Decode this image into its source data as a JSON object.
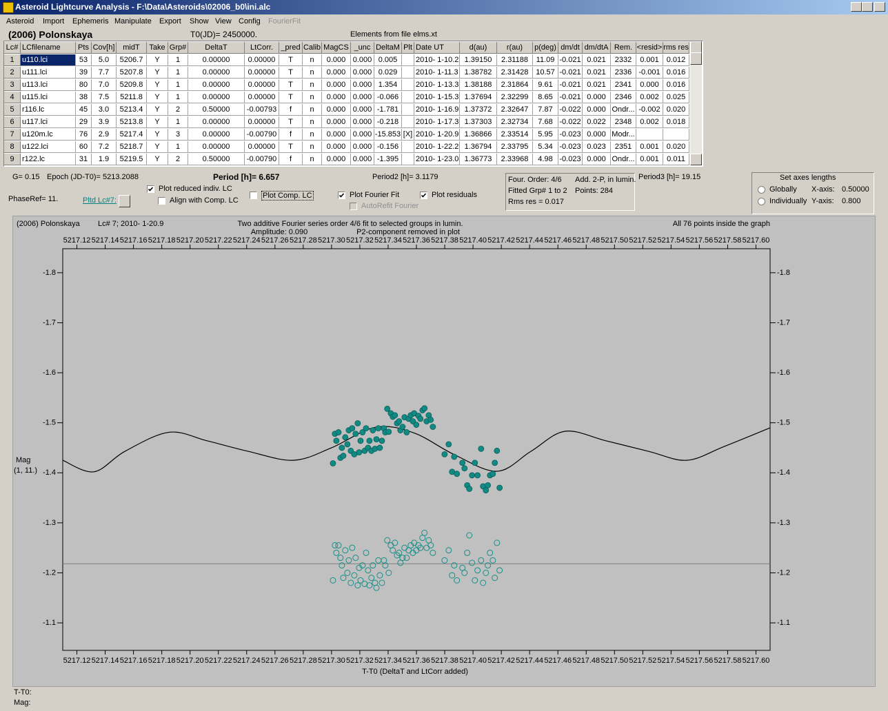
{
  "window": {
    "title": "Asteroid Lightcurve Analysis - F:\\Data\\Asteroids\\02006_b0\\ini.alc"
  },
  "menu": [
    "Asteroid",
    "Import",
    "Ephemeris",
    "Manipulate",
    "Export",
    "Show",
    "View",
    "Config",
    "FourierFit"
  ],
  "header": {
    "object": "(2006) Polonskaya",
    "t0": "T0(JD)= 2450000.",
    "elements": "Elements from file elms.xt"
  },
  "table": {
    "columns": [
      "Lc#",
      "LCfilename",
      "Pts",
      "Cov[h]",
      "midT",
      "Take",
      "Grp#",
      "DeltaT",
      "LtCorr.",
      "_pred",
      "Calib",
      "MagCS",
      "_unc",
      "DeltaM",
      "Plt",
      "Date UT",
      "d(au)",
      "r(au)",
      "p(deg)",
      "dm/dt",
      "dm/dtA",
      "Rem.",
      "<resid>",
      "rms res"
    ],
    "rows": [
      [
        "1",
        "u110.lci",
        "53",
        "5.0",
        "5206.7",
        "Y",
        "1",
        "0.00000",
        "0.00000",
        "T",
        "n",
        "0.000",
        "0.000",
        "0.005",
        null,
        "2010- 1-10.2",
        "1.39150",
        "2.31188",
        "11.09",
        "-0.021",
        "0.021",
        "2332",
        "0.001",
        "0.012"
      ],
      [
        "2",
        "u111.lci",
        "39",
        "7.7",
        "5207.8",
        "Y",
        "1",
        "0.00000",
        "0.00000",
        "T",
        "n",
        "0.000",
        "0.000",
        "0.029",
        null,
        "2010- 1-11.3",
        "1.38782",
        "2.31428",
        "10.57",
        "-0.021",
        "0.021",
        "2336",
        "-0.001",
        "0.016"
      ],
      [
        "3",
        "u113.lci",
        "80",
        "7.0",
        "5209.8",
        "Y",
        "1",
        "0.00000",
        "0.00000",
        "T",
        "n",
        "0.000",
        "0.000",
        "1.354",
        null,
        "2010- 1-13.3",
        "1.38188",
        "2.31864",
        "9.61",
        "-0.021",
        "0.021",
        "2341",
        "0.000",
        "0.016"
      ],
      [
        "4",
        "u115.lci",
        "38",
        "7.5",
        "5211.8",
        "Y",
        "1",
        "0.00000",
        "0.00000",
        "T",
        "n",
        "0.000",
        "0.000",
        "-0.066",
        null,
        "2010- 1-15.3",
        "1.37694",
        "2.32299",
        "8.65",
        "-0.021",
        "0.000",
        "2346",
        "0.002",
        "0.025"
      ],
      [
        "5",
        "r116.lc",
        "45",
        "3.0",
        "5213.4",
        "Y",
        "2",
        "0.50000",
        "-0.00793",
        "f",
        "n",
        "0.000",
        "0.000",
        "-1.781",
        null,
        "2010- 1-16.9",
        "1.37372",
        "2.32647",
        "7.87",
        "-0.022",
        "0.000",
        "Ondr...",
        "-0.002",
        "0.020"
      ],
      [
        "6",
        "u117.lci",
        "29",
        "3.9",
        "5213.8",
        "Y",
        "1",
        "0.00000",
        "0.00000",
        "T",
        "n",
        "0.000",
        "0.000",
        "-0.218",
        null,
        "2010- 1-17.3",
        "1.37303",
        "2.32734",
        "7.68",
        "-0.022",
        "0.022",
        "2348",
        "0.002",
        "0.018"
      ],
      [
        "7",
        "u120m.lc",
        "76",
        "2.9",
        "5217.4",
        "Y",
        "3",
        "0.00000",
        "-0.00790",
        "f",
        "n",
        "0.000",
        "0.000",
        "-15.853",
        "[X]",
        "2010- 1-20.9",
        "1.36866",
        "2.33514",
        "5.95",
        "-0.023",
        "0.000",
        "Modr...",
        null,
        null
      ],
      [
        "8",
        "u122.lci",
        "60",
        "7.2",
        "5218.7",
        "Y",
        "1",
        "0.00000",
        "0.00000",
        "T",
        "n",
        "0.000",
        "0.000",
        "-0.156",
        null,
        "2010- 1-22.2",
        "1.36794",
        "2.33795",
        "5.34",
        "-0.023",
        "0.023",
        "2351",
        "0.001",
        "0.020"
      ],
      [
        "9",
        "r122.lc",
        "31",
        "1.9",
        "5219.5",
        "Y",
        "2",
        "0.50000",
        "-0.00790",
        "f",
        "n",
        "0.000",
        "0.000",
        "-1.395",
        null,
        "2010- 1-23.0",
        "1.36773",
        "2.33968",
        "4.98",
        "-0.023",
        "0.000",
        "Ondr...",
        "0.001",
        "0.011"
      ]
    ]
  },
  "controls": {
    "g": "G= 0.15",
    "epoch": "Epoch (JD-T0)= 5213.2088",
    "period": "Period [h]= 6.657",
    "period2": "Period2 [h]= 3.1179",
    "period3": "Period3 [h]= 19.15",
    "phaseref": "PhaseRef= 11.",
    "pltd": "Pltd Lc#7:",
    "checkboxes": [
      {
        "label": "Plot reduced indiv. LC",
        "checked": true
      },
      {
        "label": "Align with Comp. LC",
        "checked": false
      },
      {
        "label": "Plot Comp. LC",
        "checked": false
      },
      {
        "label": "Plot Fourier Fit",
        "checked": true
      },
      {
        "label": "Plot residuals",
        "checked": true
      },
      {
        "label": "AutoRefit Fourier",
        "checked": false
      }
    ],
    "fourier": {
      "order": "Four. Order:  4/6",
      "add": "Add. 2-P, in lumin.",
      "fitted": "Fitted Grp# 1 to 2",
      "points": "Points: 284",
      "rms": "Rms res     = 0.017"
    },
    "axes": {
      "title": "Set axes lengths",
      "globally": "Globally",
      "individually": "Individually",
      "xaxis": "X-axis:",
      "xval": "0.50000",
      "yaxis": "Y-axis:",
      "yval": "0.800"
    }
  },
  "chart_data": {
    "type": "scatter",
    "title": "Two additive Fourier series order 4/6 fit to selected groups in lumin.",
    "subtitle": [
      "Amplitude: 0.090",
      "P2-component removed in plot"
    ],
    "annotations": [
      "(2006) Polonskaya",
      "Lc# 7; 2010- 1-20.9",
      "All 76 points inside the graph"
    ],
    "ylabel": [
      "Mag",
      "(1, 11.)"
    ],
    "xlabel": "T-T0 (DeltaT and LtCorr added)",
    "xlim": [
      5217.11,
      5217.61
    ],
    "ylim": [
      -1.848,
      -1.045
    ],
    "y_reversed": true,
    "xticks": [
      5217.12,
      5217.14,
      5217.16,
      5217.18,
      {
        "value": 5217.2,
        "label": "5217.20"
      },
      5217.22,
      5217.24,
      5217.26,
      5217.28,
      {
        "value": 5217.3,
        "label": "5217.30"
      },
      5217.32,
      5217.34,
      5217.36,
      5217.38,
      {
        "value": 5217.4,
        "label": "5217.40"
      },
      5217.42,
      5217.44,
      5217.46,
      5217.48,
      {
        "value": 5217.5,
        "label": "5217.50"
      },
      5217.52,
      5217.54,
      5217.56,
      5217.58,
      {
        "value": 5217.6,
        "label": "5217.60"
      }
    ],
    "yticks": [
      -1.8,
      -1.7,
      -1.6,
      -1.5,
      -1.4,
      -1.3,
      -1.2,
      -1.1
    ],
    "reference_line": {
      "y": -1.218,
      "color": "#808080"
    },
    "series": [
      {
        "marker": "filled",
        "color": "#128a84",
        "x": [
          5217.301,
          5217.3024,
          5217.3034,
          5217.3049,
          5217.3063,
          5217.3073,
          5217.3083,
          5217.3097,
          5217.3112,
          5217.3122,
          5217.3136,
          5217.3146,
          5217.3161,
          5217.317,
          5217.3185,
          5217.3195,
          5217.3205,
          5217.3219,
          5217.3234,
          5217.3244,
          5217.3258,
          5217.3268,
          5217.3282,
          5217.3292,
          5217.3307,
          5217.3317,
          5217.3331,
          5217.3341,
          5217.3356,
          5217.337,
          5217.338,
          5217.3394,
          5217.3404,
          5217.3419,
          5217.3433,
          5217.3448,
          5217.3463,
          5217.3477,
          5217.3487,
          5217.3502,
          5217.3516,
          5217.3531,
          5217.3545,
          5217.356,
          5217.3575,
          5217.3584,
          5217.3599,
          5217.3614,
          5217.3628,
          5217.3643,
          5217.3657,
          5217.3672,
          5217.3687,
          5217.3701,
          5217.3716,
          5217.3799,
          5217.3828,
          5217.3852,
          5217.3867,
          5217.3886,
          5217.3925,
          5217.394,
          5217.3959,
          5217.3974,
          5217.3993,
          5217.4013,
          5217.4032,
          5217.4057,
          5217.4071,
          5217.4091,
          5217.4105,
          5217.412,
          5217.414,
          5217.4154,
          5217.4169,
          5217.4188
        ],
        "y": [
          -1.419,
          -1.478,
          -1.464,
          -1.481,
          -1.43,
          -1.45,
          -1.434,
          -1.471,
          -1.457,
          -1.485,
          -1.444,
          -1.489,
          -1.437,
          -1.478,
          -1.499,
          -1.441,
          -1.464,
          -1.481,
          -1.444,
          -1.489,
          -1.45,
          -1.464,
          -1.444,
          -1.485,
          -1.448,
          -1.467,
          -1.489,
          -1.45,
          -1.464,
          -1.489,
          -1.481,
          -1.528,
          -1.482,
          -1.519,
          -1.512,
          -1.515,
          -1.499,
          -1.503,
          -1.485,
          -1.492,
          -1.511,
          -1.481,
          -1.508,
          -1.515,
          -1.503,
          -1.519,
          -1.496,
          -1.514,
          -1.508,
          -1.525,
          -1.529,
          -1.503,
          -1.515,
          -1.506,
          -1.492,
          -1.437,
          -1.457,
          -1.402,
          -1.432,
          -1.398,
          -1.42,
          -1.409,
          -1.375,
          -1.368,
          -1.395,
          -1.42,
          -1.395,
          -1.448,
          -1.373,
          -1.365,
          -1.375,
          -1.395,
          -1.398,
          -1.42,
          -1.444,
          -1.37
        ]
      },
      {
        "marker": "hollow",
        "color": "#178f89",
        "x": [
          5217.301,
          5217.3024,
          5217.3034,
          5217.3049,
          5217.3063,
          5217.3073,
          5217.3083,
          5217.3097,
          5217.3112,
          5217.3122,
          5217.3136,
          5217.3146,
          5217.3161,
          5217.317,
          5217.3185,
          5217.3195,
          5217.3205,
          5217.3219,
          5217.3234,
          5217.3244,
          5217.3258,
          5217.3268,
          5217.3282,
          5217.3292,
          5217.3307,
          5217.3317,
          5217.3331,
          5217.3341,
          5217.3356,
          5217.337,
          5217.338,
          5217.3394,
          5217.3404,
          5217.3419,
          5217.3433,
          5217.3448,
          5217.3463,
          5217.3477,
          5217.3487,
          5217.3502,
          5217.3516,
          5217.3531,
          5217.3545,
          5217.356,
          5217.3575,
          5217.3584,
          5217.3599,
          5217.3614,
          5217.3628,
          5217.3643,
          5217.3657,
          5217.3672,
          5217.3687,
          5217.3701,
          5217.3716,
          5217.3799,
          5217.3828,
          5217.3852,
          5217.3867,
          5217.3886,
          5217.3925,
          5217.394,
          5217.3959,
          5217.3974,
          5217.3993,
          5217.4013,
          5217.4032,
          5217.4057,
          5217.4071,
          5217.4091,
          5217.4105,
          5217.412,
          5217.414,
          5217.4154,
          5217.4169,
          5217.4188
        ],
        "y": [
          -1.185,
          -1.255,
          -1.24,
          -1.255,
          -1.23,
          -1.215,
          -1.19,
          -1.245,
          -1.2,
          -1.225,
          -1.18,
          -1.25,
          -1.195,
          -1.23,
          -1.175,
          -1.21,
          -1.185,
          -1.215,
          -1.178,
          -1.24,
          -1.205,
          -1.175,
          -1.19,
          -1.215,
          -1.18,
          -1.17,
          -1.225,
          -1.195,
          -1.18,
          -1.225,
          -1.215,
          -1.265,
          -1.2,
          -1.255,
          -1.245,
          -1.26,
          -1.235,
          -1.24,
          -1.22,
          -1.23,
          -1.25,
          -1.23,
          -1.245,
          -1.255,
          -1.24,
          -1.26,
          -1.245,
          -1.255,
          -1.25,
          -1.27,
          -1.28,
          -1.25,
          -1.265,
          -1.255,
          -1.24,
          -1.225,
          -1.245,
          -1.195,
          -1.215,
          -1.185,
          -1.21,
          -1.2,
          -1.24,
          -1.275,
          -1.22,
          -1.185,
          -1.205,
          -1.225,
          -1.18,
          -1.2,
          -1.215,
          -1.24,
          -1.225,
          -1.19,
          -1.26,
          -1.205
        ]
      },
      {
        "marker": "line",
        "color": "#000000",
        "x": [
          5217.11,
          5217.132,
          5217.154,
          5217.185,
          5217.212,
          5217.241,
          5217.273,
          5217.3,
          5217.331,
          5217.358,
          5217.387,
          5217.417,
          5217.441,
          5217.465,
          5217.494,
          5217.524,
          5217.551,
          5217.577,
          5217.61
        ],
        "y": [
          -1.425,
          -1.402,
          -1.443,
          -1.481,
          -1.464,
          -1.443,
          -1.425,
          -1.45,
          -1.491,
          -1.48,
          -1.436,
          -1.403,
          -1.443,
          -1.483,
          -1.464,
          -1.443,
          -1.425,
          -1.452,
          -1.49
        ]
      }
    ]
  },
  "status": {
    "t": "T-T0:",
    "mag": "Mag:"
  }
}
